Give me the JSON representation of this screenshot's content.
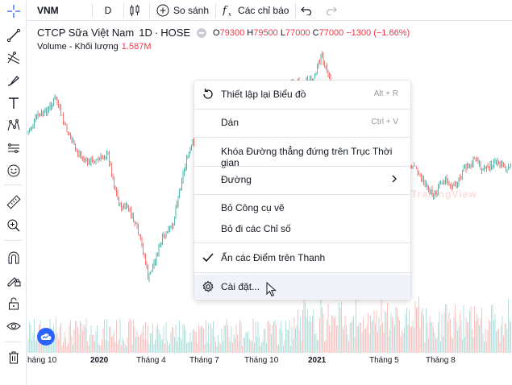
{
  "toolbar": {
    "symbol": "VNM",
    "interval": "D",
    "compare_label": "So sánh",
    "indicators_label": "Các chỉ báo"
  },
  "legend": {
    "name": "CTCP Sữa Việt Nam",
    "interval": "1D",
    "exchange": "HOSE",
    "open_label": "O",
    "open": "79300",
    "high_label": "H",
    "high": "79500",
    "low_label": "L",
    "low": "77000",
    "close_label": "C",
    "close": "77000",
    "change": "−1300 (−1.66%)",
    "volume_label": "Volume - Khối lượng",
    "volume": "1.587M"
  },
  "watermark": "TradingView",
  "x_axis": {
    "labels": [
      "háng 10",
      "2020",
      "Tháng 4",
      "Tháng 7",
      "Tháng 10",
      "2021",
      "Tháng 5",
      "Tháng 8"
    ]
  },
  "context_menu": {
    "items": [
      {
        "label": "Thiết lập lại Biểu đồ",
        "shortcut": "Alt + R",
        "icon": "reset-icon"
      },
      {
        "label": "Dán",
        "shortcut": "Ctrl + V"
      },
      {
        "label": "Khóa Đường thẳng đứng trên Trục Thời gian"
      },
      {
        "label": "Đường",
        "submenu": true
      },
      {
        "label": "Bỏ Công cụ vẽ"
      },
      {
        "label": "Bỏ đi các Chỉ số"
      },
      {
        "label": "Ẩn các Điểm trên Thanh",
        "checked": true,
        "icon": "check-icon"
      },
      {
        "label": "Cài đặt...",
        "icon": "gear-icon",
        "hovered": true
      }
    ]
  },
  "colors": {
    "up": "#26a69a",
    "down": "#ef5350",
    "accent": "#2962ff"
  }
}
